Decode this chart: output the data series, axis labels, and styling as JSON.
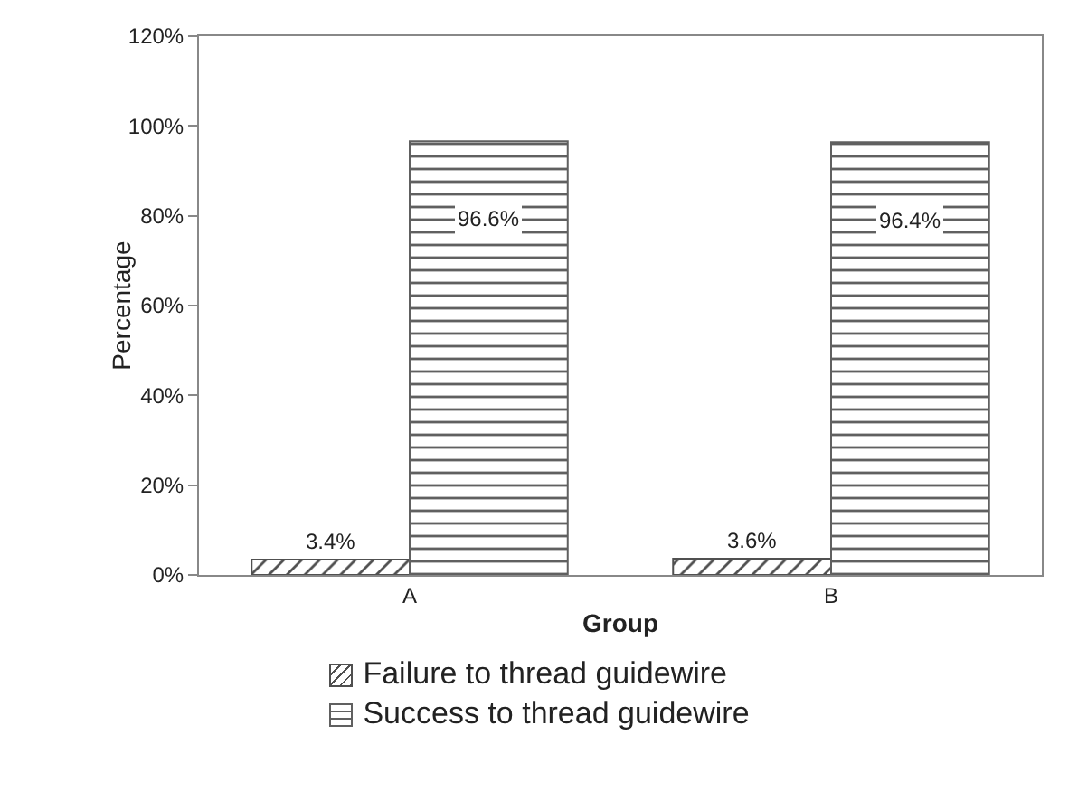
{
  "chart_data": {
    "type": "bar",
    "xlabel": "Group",
    "ylabel": "Percentage",
    "categories": [
      "A",
      "B"
    ],
    "series": [
      {
        "name": "Failure to thread guidewire",
        "color": "#505050",
        "values": [
          3.4,
          3.6
        ],
        "value_labels": [
          "3.4%",
          "3.6%"
        ]
      },
      {
        "name": "Success to thread guidewire",
        "color": "#606060",
        "values": [
          96.6,
          96.4
        ],
        "value_labels": [
          "96.6%",
          "96.4%"
        ]
      }
    ],
    "ylim": [
      0,
      120
    ],
    "yticks": [
      {
        "value": 0,
        "label": "0%"
      },
      {
        "value": 20,
        "label": "20%"
      },
      {
        "value": 40,
        "label": "40%"
      },
      {
        "value": 60,
        "label": "60%"
      },
      {
        "value": 80,
        "label": "80%"
      },
      {
        "value": 100,
        "label": "100%"
      },
      {
        "value": 120,
        "label": "120%"
      }
    ],
    "grid": false,
    "legend": "bottom"
  }
}
